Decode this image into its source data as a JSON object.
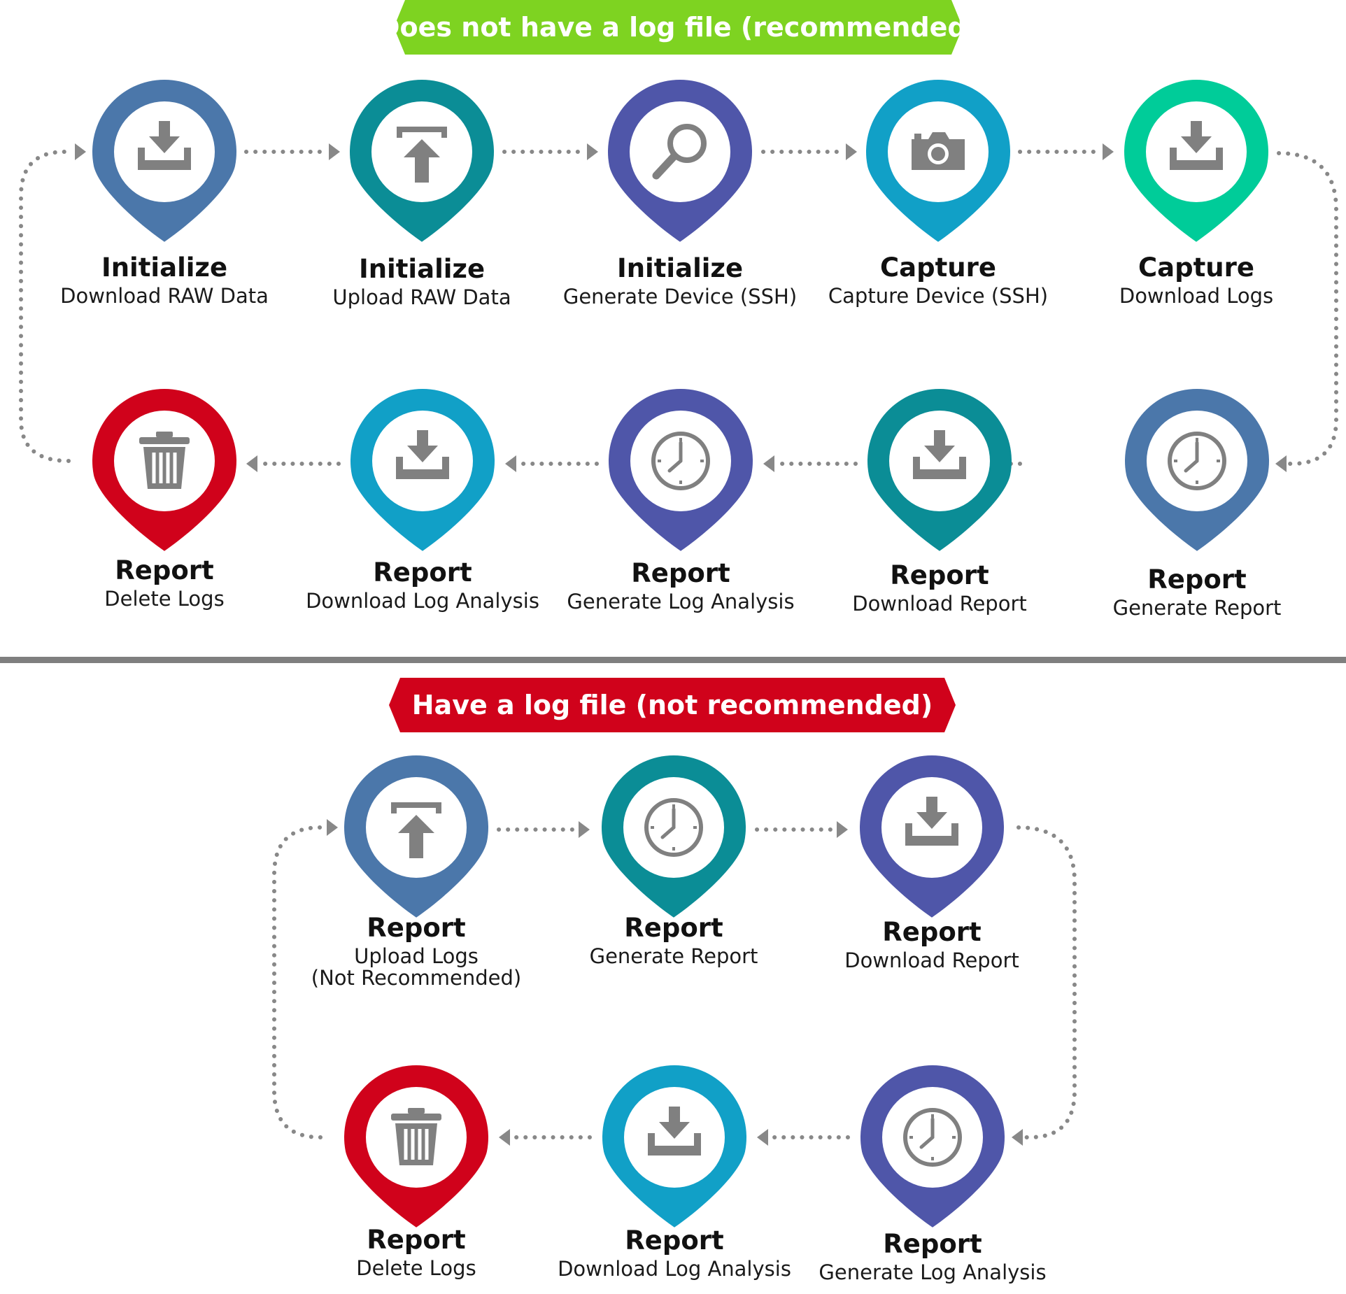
{
  "section_recommended": {
    "banner": {
      "label": "Does not have a log file (recommended)",
      "color": "#7ed321"
    },
    "steps": [
      {
        "title": "Initialize",
        "subtitle": [
          "Download RAW Data"
        ],
        "icon": "download-icon",
        "color": "#4b77aa"
      },
      {
        "title": "Initialize",
        "subtitle": [
          "Upload RAW Data"
        ],
        "icon": "upload-icon",
        "color": "#0b8d96"
      },
      {
        "title": "Initialize",
        "subtitle": [
          "Generate Device (SSH)"
        ],
        "icon": "search-icon",
        "color": "#4f56a9"
      },
      {
        "title": "Capture",
        "subtitle": [
          "Capture Device (SSH)"
        ],
        "icon": "camera-icon",
        "color": "#11a0c7"
      },
      {
        "title": "Capture",
        "subtitle": [
          "Download Logs"
        ],
        "icon": "download-icon",
        "color": "#00cc99"
      },
      {
        "title": "Report",
        "subtitle": [
          "Generate Report"
        ],
        "icon": "clock-icon",
        "color": "#4b77aa"
      },
      {
        "title": "Report",
        "subtitle": [
          "Download Report"
        ],
        "icon": "download-icon",
        "color": "#0b8d96"
      },
      {
        "title": "Report",
        "subtitle": [
          "Generate Log Analysis"
        ],
        "icon": "clock-icon",
        "color": "#4f56a9"
      },
      {
        "title": "Report",
        "subtitle": [
          "Download Log Analysis"
        ],
        "icon": "download-icon",
        "color": "#11a0c7"
      },
      {
        "title": "Report",
        "subtitle": [
          "Delete Logs"
        ],
        "icon": "trash-icon",
        "color": "#d0021b"
      }
    ]
  },
  "section_not_recommended": {
    "banner": {
      "label": "Have a log file (not recommended)",
      "color": "#d0021b"
    },
    "steps": [
      {
        "title": "Report",
        "subtitle": [
          "Upload Logs",
          "(Not Recommended)"
        ],
        "icon": "upload-icon",
        "color": "#4b77aa"
      },
      {
        "title": "Report",
        "subtitle": [
          "Generate Report"
        ],
        "icon": "clock-icon",
        "color": "#0b8d96"
      },
      {
        "title": "Report",
        "subtitle": [
          "Download Report"
        ],
        "icon": "download-icon",
        "color": "#4f56a9"
      },
      {
        "title": "Report",
        "subtitle": [
          "Generate Log Analysis"
        ],
        "icon": "clock-icon",
        "color": "#4f56a9"
      },
      {
        "title": "Report",
        "subtitle": [
          "Download Log Analysis"
        ],
        "icon": "download-icon",
        "color": "#11a0c7"
      },
      {
        "title": "Report",
        "subtitle": [
          "Delete Logs"
        ],
        "icon": "trash-icon",
        "color": "#d0021b"
      }
    ]
  },
  "divider_color": "#7f7f7f",
  "connector_color": "#888888",
  "icon_color": "#808080"
}
